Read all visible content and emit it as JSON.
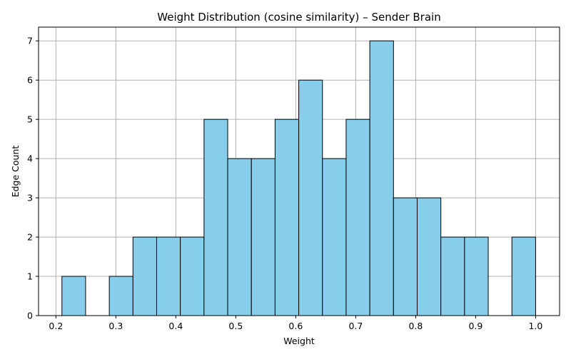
{
  "chart_data": {
    "type": "bar",
    "title": "Weight Distribution (cosine similarity) – Sender Brain",
    "xlabel": "Weight",
    "ylabel": "Edge Count",
    "xlim": [
      0.171,
      1.04
    ],
    "ylim": [
      0,
      7.35
    ],
    "x_ticks": [
      "0.2",
      "0.3",
      "0.4",
      "0.5",
      "0.6",
      "0.7",
      "0.8",
      "0.9",
      "1.0"
    ],
    "y_ticks": [
      "0",
      "1",
      "2",
      "3",
      "4",
      "5",
      "6",
      "7"
    ],
    "grid": true,
    "bar_color": "#87CEEB",
    "edge_color": "#000000",
    "bins": [
      {
        "start": 0.21,
        "end": 0.2495,
        "count": 1
      },
      {
        "start": 0.2495,
        "end": 0.289,
        "count": 0
      },
      {
        "start": 0.289,
        "end": 0.3285,
        "count": 1
      },
      {
        "start": 0.3285,
        "end": 0.368,
        "count": 2
      },
      {
        "start": 0.368,
        "end": 0.4075,
        "count": 2
      },
      {
        "start": 0.4075,
        "end": 0.447,
        "count": 2
      },
      {
        "start": 0.447,
        "end": 0.4865,
        "count": 5
      },
      {
        "start": 0.4865,
        "end": 0.526,
        "count": 4
      },
      {
        "start": 0.526,
        "end": 0.5655,
        "count": 4
      },
      {
        "start": 0.5655,
        "end": 0.605,
        "count": 5
      },
      {
        "start": 0.605,
        "end": 0.6445,
        "count": 6
      },
      {
        "start": 0.6445,
        "end": 0.684,
        "count": 4
      },
      {
        "start": 0.684,
        "end": 0.7235,
        "count": 5
      },
      {
        "start": 0.7235,
        "end": 0.763,
        "count": 7
      },
      {
        "start": 0.763,
        "end": 0.8025,
        "count": 3
      },
      {
        "start": 0.8025,
        "end": 0.842,
        "count": 3
      },
      {
        "start": 0.842,
        "end": 0.8815,
        "count": 2
      },
      {
        "start": 0.8815,
        "end": 0.921,
        "count": 2
      },
      {
        "start": 0.921,
        "end": 0.9605,
        "count": 0
      },
      {
        "start": 0.9605,
        "end": 1.0,
        "count": 2
      }
    ]
  }
}
